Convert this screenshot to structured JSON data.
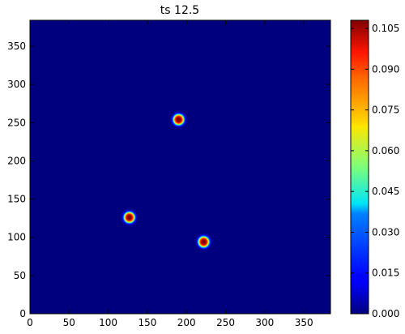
{
  "chart_data": {
    "type": "heatmap",
    "title": "ts 12.5",
    "xlabel": "",
    "ylabel": "",
    "xlim": [
      0,
      384
    ],
    "ylim": [
      0,
      384
    ],
    "x_ticks": [
      0,
      50,
      100,
      150,
      200,
      250,
      300,
      350
    ],
    "y_ticks": [
      0,
      50,
      100,
      150,
      200,
      250,
      300,
      350
    ],
    "colormap": "jet",
    "colorbar": {
      "range": [
        0.0,
        0.108
      ],
      "ticks": [
        "0.000",
        "0.015",
        "0.030",
        "0.045",
        "0.060",
        "0.075",
        "0.090",
        "0.105"
      ],
      "tick_values": [
        0.0,
        0.015,
        0.03,
        0.045,
        0.06,
        0.075,
        0.09,
        0.105
      ]
    },
    "background_value": 0.0,
    "peaks": [
      {
        "x": 190,
        "y": 254,
        "peak": 0.108,
        "radius": 10
      },
      {
        "x": 127,
        "y": 126,
        "peak": 0.108,
        "radius": 10
      },
      {
        "x": 222,
        "y": 94,
        "peak": 0.108,
        "radius": 10
      }
    ],
    "grid": false
  }
}
